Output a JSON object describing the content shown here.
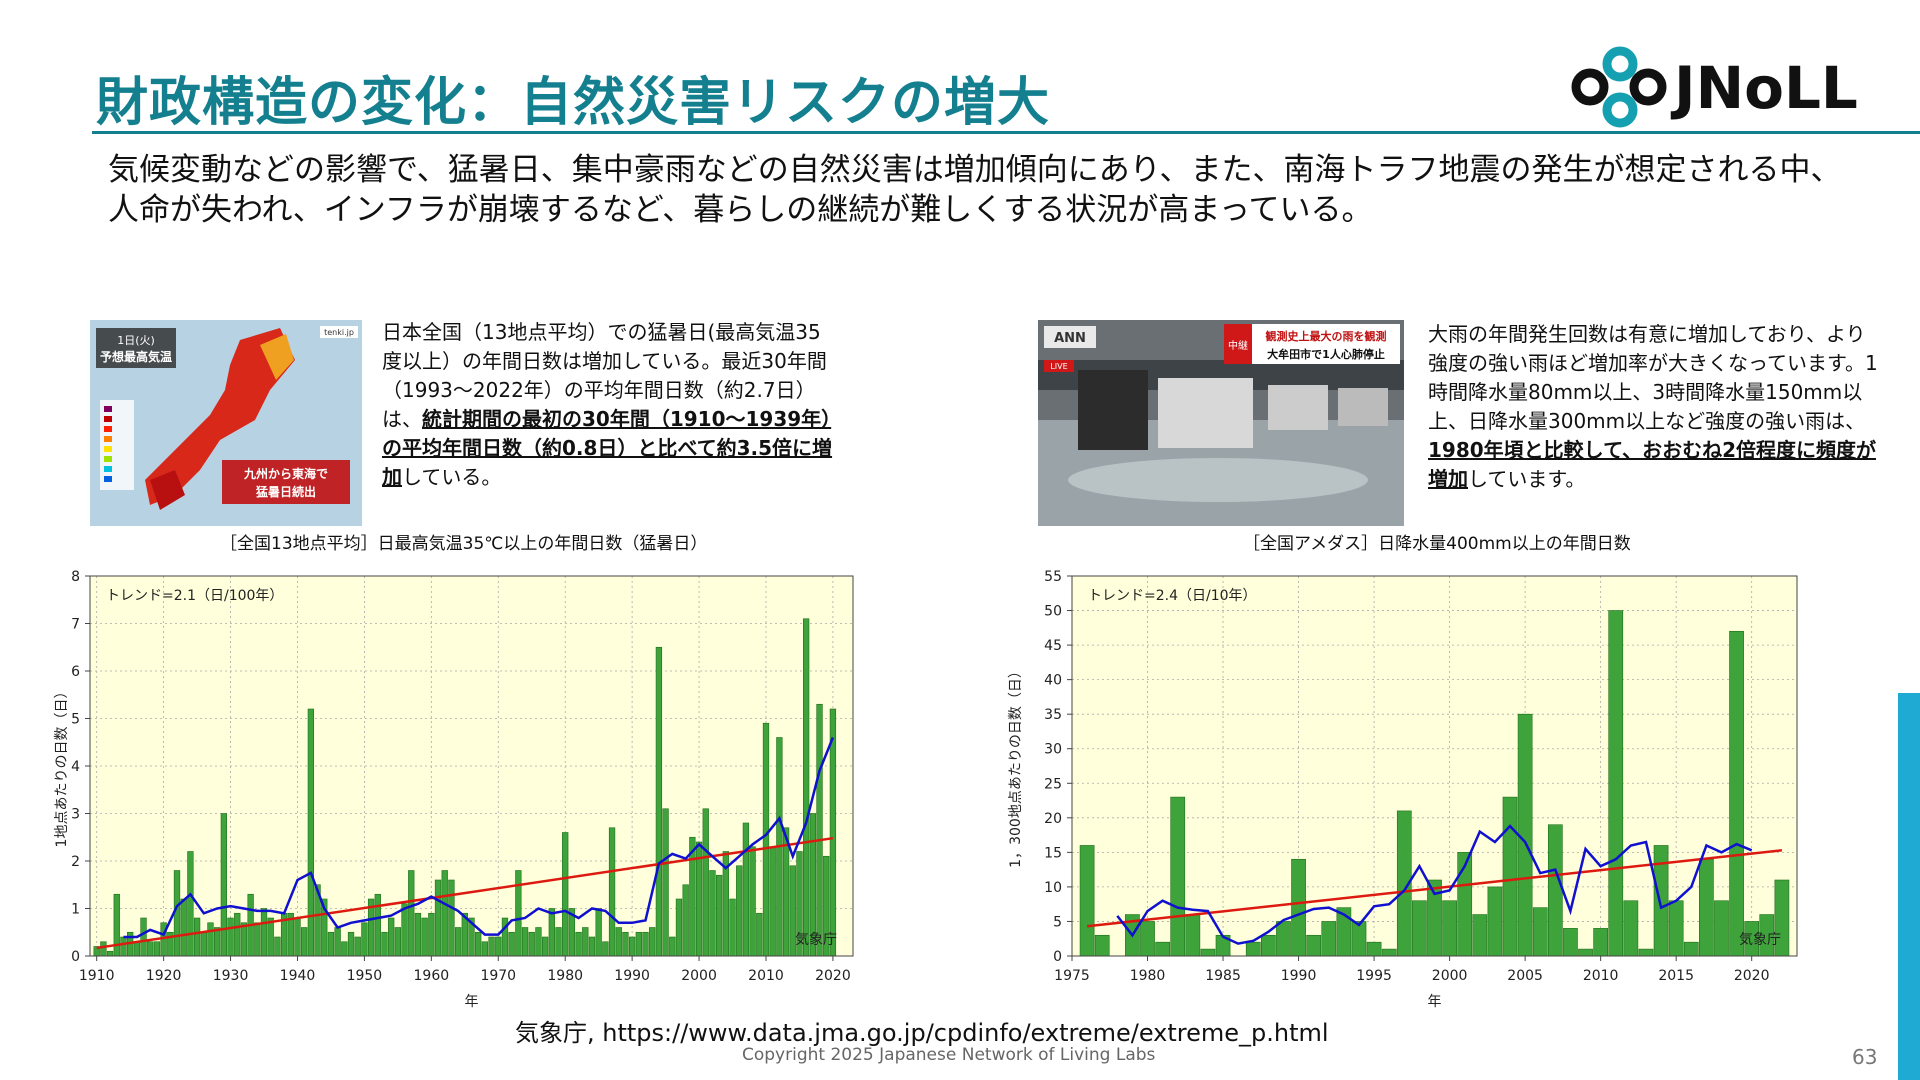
{
  "header": {
    "title": "財政構造の変化：自然災害リスクの増大",
    "logo_text": "JNoLL"
  },
  "lead": "気候変動などの影響で、猛暑日、集中豪雨などの自然災害は増加傾向にあり、また、南海トラフ地震の発生が想定される中、人命が失われ、インフラが崩壊するなど、暮らしの継続が難しくする状況が高まっている。",
  "left_panel": {
    "photo": {
      "badge": "1日(火)",
      "heading": "予想最高気温",
      "caption1": "九州から東海で",
      "caption2": "猛暑日続出",
      "corner": "tenki.jp"
    },
    "desc_pre": "日本全国（13地点平均）での猛暑日(最高気温35度以上）の年間日数は増加している。最近30年間（1993～2022年）の平均年間日数（約2.7日）は、",
    "desc_bold": "統計期間の最初の30年間（1910～1939年）の平均年間日数（約0.8日）と比べて約3.5倍に増加",
    "desc_post": "している。",
    "chart_title": "［全国13地点平均］日最高気温35℃以上の年間日数（猛暑日）"
  },
  "right_panel": {
    "photo": {
      "corner": "ANN",
      "banner_tag": "中継",
      "banner_line1": "観測史上最大の雨を観測",
      "banner_line2": "大牟田市で1人心肺停止",
      "live": "LIVE"
    },
    "desc_pre": "大雨の年間発生回数は有意に増加しており、より強度の強い雨ほど増加率が大きくなっています。1時間降水量80mm以上、3時間降水量150mm以上、日降水量300mm以上など強度の強い雨は、",
    "desc_bold": "1980年頃と比較して、おおむね2倍程度に頻度が増加",
    "desc_post": "しています。",
    "chart_title": "［全国アメダス］日降水量400mm以上の年間日数"
  },
  "footer": {
    "source": "気象庁, https://www.data.jma.go.jp/cpdinfo/extreme/extreme_p.html",
    "copyright": "Copyright 2025  Japanese Network of Living Labs",
    "page_number": "63"
  },
  "colors": {
    "title": "#14808f",
    "bar_fill": "#3ea33a",
    "bar_stroke": "#1f6e1c",
    "plot_bg": "#ffffdb",
    "moving_avg": "#1010d0",
    "trend": "#dd1a10",
    "sidebar": "#1eaad3"
  },
  "chart_data": [
    {
      "type": "bar",
      "trend_label": "トレンド=2.1（日/100年）",
      "credit": "気象庁",
      "xlabel": "年",
      "ylabel": "1地点あたりの日数（日）",
      "xlim": [
        1909,
        2023
      ],
      "ylim": [
        0,
        8
      ],
      "yticks": [
        0,
        1,
        2,
        3,
        4,
        5,
        6,
        7,
        8
      ],
      "xticks": [
        1910,
        1920,
        1930,
        1940,
        1950,
        1960,
        1970,
        1980,
        1990,
        2000,
        2010,
        2020
      ],
      "x_start": 1910,
      "values": [
        0.2,
        0.3,
        0.1,
        1.3,
        0.4,
        0.5,
        0.3,
        0.8,
        0.3,
        0.3,
        0.7,
        0.5,
        1.8,
        1.2,
        2.2,
        0.8,
        0.5,
        0.7,
        0.6,
        3.0,
        0.8,
        0.9,
        0.7,
        1.3,
        0.7,
        1.0,
        0.8,
        0.4,
        0.9,
        0.9,
        0.8,
        0.6,
        5.2,
        1.5,
        1.2,
        0.5,
        0.6,
        0.3,
        0.5,
        0.4,
        0.7,
        1.2,
        1.3,
        0.5,
        0.8,
        0.6,
        1.1,
        1.8,
        0.9,
        0.8,
        0.9,
        1.6,
        1.8,
        1.6,
        0.6,
        0.9,
        0.8,
        0.5,
        0.3,
        0.4,
        0.4,
        0.8,
        0.5,
        1.8,
        0.6,
        0.5,
        0.6,
        0.4,
        1.0,
        0.6,
        2.6,
        1.0,
        0.5,
        0.6,
        0.4,
        1.0,
        0.3,
        2.7,
        0.6,
        0.5,
        0.4,
        0.5,
        0.5,
        0.6,
        6.5,
        3.1,
        0.4,
        1.2,
        1.5,
        2.5,
        2.4,
        3.1,
        1.8,
        1.7,
        2.2,
        1.2,
        1.9,
        2.8,
        2.3,
        0.9,
        4.9,
        2.3,
        4.6,
        2.7,
        1.9,
        2.2,
        7.1,
        3.0,
        5.3,
        2.1,
        5.2
      ],
      "moving_average": [
        [
          1914,
          0.4
        ],
        [
          1916,
          0.4
        ],
        [
          1918,
          0.55
        ],
        [
          1920,
          0.45
        ],
        [
          1922,
          1.05
        ],
        [
          1924,
          1.3
        ],
        [
          1926,
          0.9
        ],
        [
          1928,
          1.0
        ],
        [
          1930,
          1.05
        ],
        [
          1932,
          1.0
        ],
        [
          1934,
          0.95
        ],
        [
          1936,
          0.95
        ],
        [
          1938,
          0.9
        ],
        [
          1940,
          1.6
        ],
        [
          1942,
          1.75
        ],
        [
          1944,
          1.0
        ],
        [
          1946,
          0.6
        ],
        [
          1948,
          0.7
        ],
        [
          1950,
          0.75
        ],
        [
          1952,
          0.8
        ],
        [
          1954,
          0.85
        ],
        [
          1956,
          1.0
        ],
        [
          1958,
          1.1
        ],
        [
          1960,
          1.25
        ],
        [
          1962,
          1.1
        ],
        [
          1964,
          0.95
        ],
        [
          1966,
          0.7
        ],
        [
          1968,
          0.45
        ],
        [
          1970,
          0.45
        ],
        [
          1972,
          0.75
        ],
        [
          1974,
          0.8
        ],
        [
          1976,
          1.0
        ],
        [
          1978,
          0.9
        ],
        [
          1980,
          0.95
        ],
        [
          1982,
          0.8
        ],
        [
          1984,
          1.0
        ],
        [
          1986,
          0.95
        ],
        [
          1988,
          0.7
        ],
        [
          1990,
          0.7
        ],
        [
          1992,
          0.75
        ],
        [
          1994,
          1.95
        ],
        [
          1996,
          2.15
        ],
        [
          1998,
          2.05
        ],
        [
          2000,
          2.35
        ],
        [
          2002,
          2.1
        ],
        [
          2004,
          1.85
        ],
        [
          2006,
          2.1
        ],
        [
          2008,
          2.35
        ],
        [
          2010,
          2.55
        ],
        [
          2012,
          2.9
        ],
        [
          2014,
          2.1
        ],
        [
          2016,
          2.8
        ],
        [
          2018,
          3.9
        ],
        [
          2020,
          4.6
        ]
      ],
      "trend_line": [
        [
          1910,
          0.17
        ],
        [
          2020,
          2.48
        ]
      ]
    },
    {
      "type": "bar",
      "trend_label": "トレンド=2.4（日/10年）",
      "credit": "気象庁",
      "xlabel": "年",
      "ylabel": "1，300地点あたりの日数（日）",
      "xlim": [
        1975,
        2023
      ],
      "ylim": [
        0,
        55
      ],
      "yticks": [
        0,
        5,
        10,
        15,
        20,
        25,
        30,
        35,
        40,
        45,
        50,
        55
      ],
      "xticks": [
        1975,
        1980,
        1985,
        1990,
        1995,
        2000,
        2005,
        2010,
        2015,
        2020
      ],
      "x_start": 1976,
      "values": [
        16,
        3,
        0,
        6,
        5,
        2,
        23,
        6,
        1,
        3,
        0,
        2,
        3,
        5,
        14,
        3,
        5,
        7,
        5,
        2,
        1,
        21,
        8,
        11,
        8,
        15,
        6,
        10,
        23,
        35,
        7,
        19,
        4,
        1,
        4,
        50,
        8,
        1,
        16,
        8,
        2,
        14,
        8,
        47,
        5,
        6,
        11
      ],
      "moving_average": [
        [
          1978,
          5.8
        ],
        [
          1979,
          3.0
        ],
        [
          1980,
          6.5
        ],
        [
          1981,
          8.0
        ],
        [
          1982,
          7.0
        ],
        [
          1983,
          6.7
        ],
        [
          1984,
          6.5
        ],
        [
          1985,
          2.8
        ],
        [
          1986,
          1.8
        ],
        [
          1987,
          2.2
        ],
        [
          1988,
          3.5
        ],
        [
          1989,
          5.2
        ],
        [
          1990,
          6.0
        ],
        [
          1991,
          6.8
        ],
        [
          1992,
          7.0
        ],
        [
          1993,
          6.0
        ],
        [
          1994,
          4.5
        ],
        [
          1995,
          7.2
        ],
        [
          1996,
          7.5
        ],
        [
          1997,
          9.5
        ],
        [
          1998,
          13.0
        ],
        [
          1999,
          9.0
        ],
        [
          2000,
          9.5
        ],
        [
          2001,
          13.0
        ],
        [
          2002,
          18.0
        ],
        [
          2003,
          16.5
        ],
        [
          2004,
          18.8
        ],
        [
          2005,
          16.5
        ],
        [
          2006,
          12.0
        ],
        [
          2007,
          12.5
        ],
        [
          2008,
          6.5
        ],
        [
          2009,
          15.5
        ],
        [
          2010,
          13.0
        ],
        [
          2011,
          14.0
        ],
        [
          2012,
          16.0
        ],
        [
          2013,
          16.5
        ],
        [
          2014,
          7.0
        ],
        [
          2015,
          8.0
        ],
        [
          2016,
          10.0
        ],
        [
          2017,
          16.0
        ],
        [
          2018,
          15.0
        ],
        [
          2019,
          16.2
        ],
        [
          2020,
          15.3
        ]
      ],
      "trend_line": [
        [
          1976,
          4.3
        ],
        [
          2022,
          15.3
        ]
      ]
    }
  ]
}
